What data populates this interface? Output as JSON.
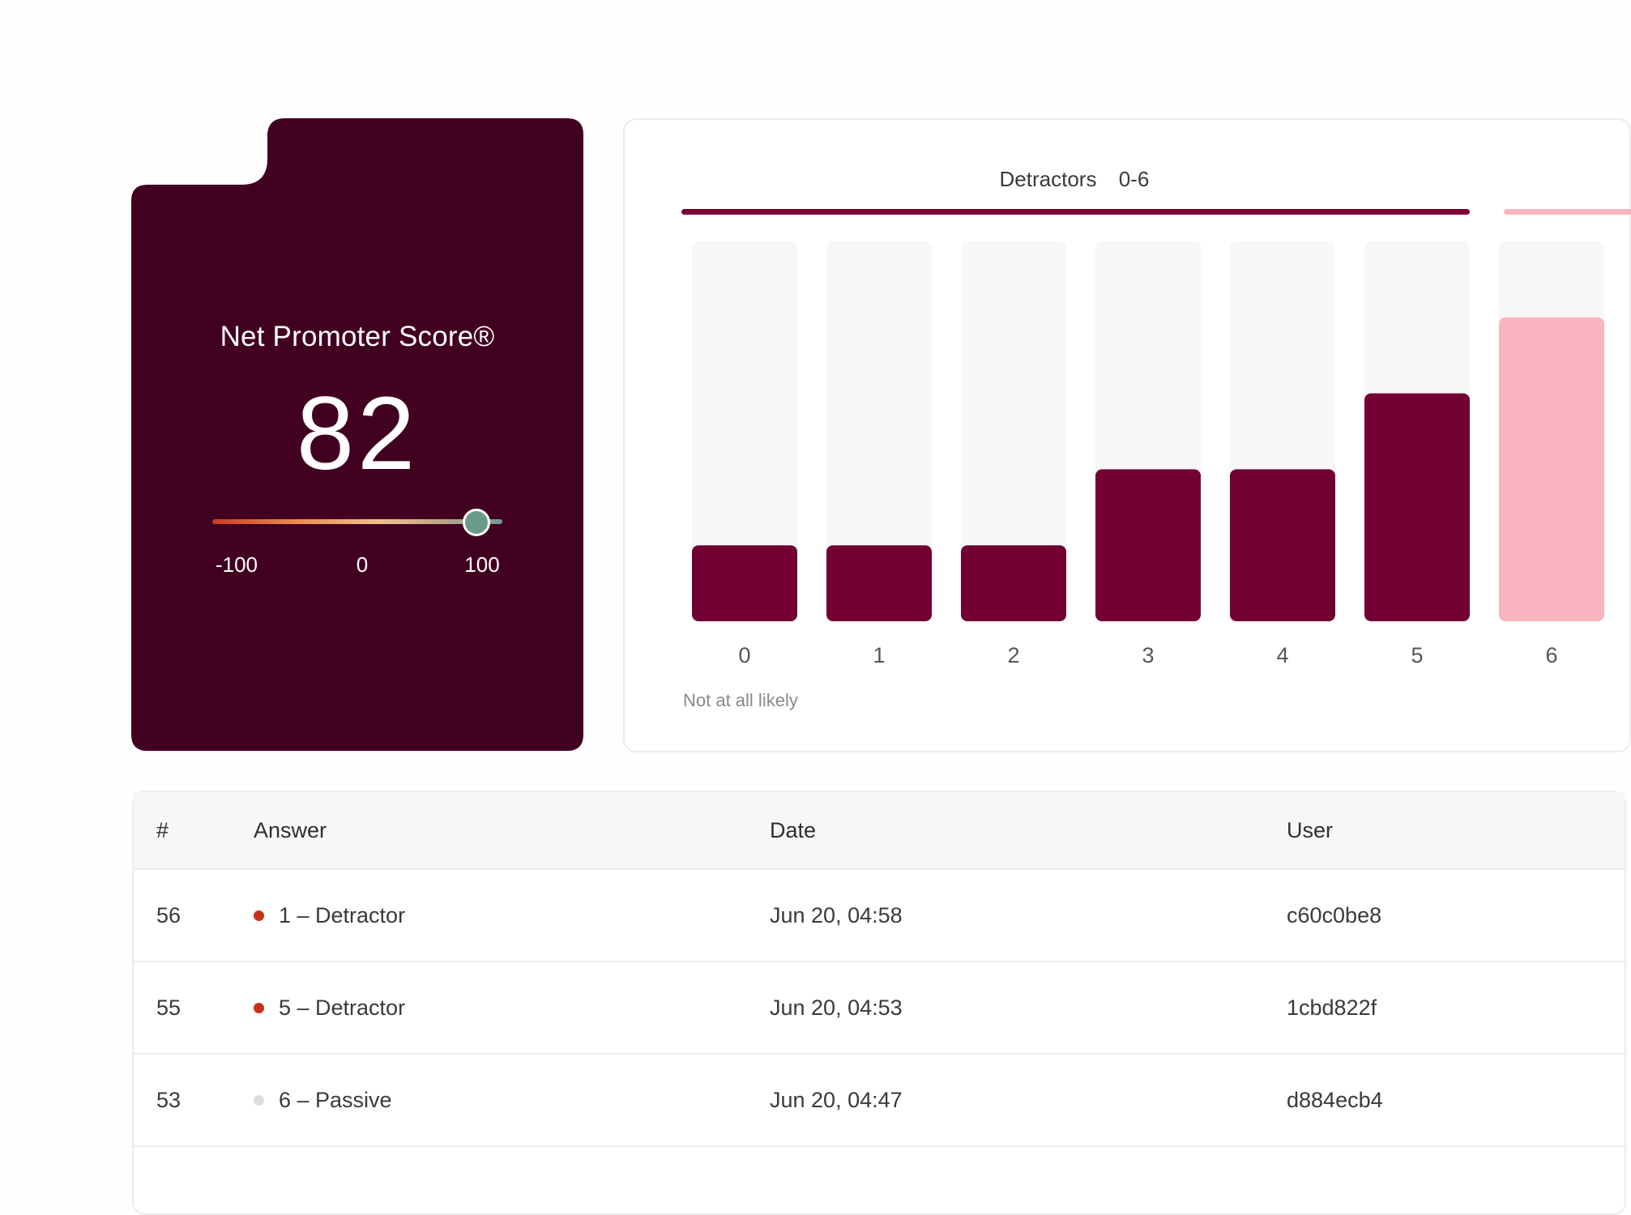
{
  "nps_card": {
    "title": "Net Promoter Score®",
    "value": "82",
    "gauge": {
      "min_label": "-100",
      "mid_label": "0",
      "max_label": "100",
      "min": -100,
      "max": 100,
      "value": 82
    },
    "colors": {
      "background": "#420020",
      "thumb": "#6a9b88"
    }
  },
  "chart_data": {
    "type": "bar",
    "groups": [
      {
        "label": "Detractors",
        "range": "0-6",
        "color": "#7a0035"
      }
    ],
    "categories": [
      "0",
      "1",
      "2",
      "3",
      "4",
      "5",
      "6"
    ],
    "values": [
      1,
      1,
      1,
      2,
      2,
      3,
      4
    ],
    "bar_colors": [
      "#720033",
      "#720033",
      "#720033",
      "#720033",
      "#720033",
      "#720033",
      "#f8b5c0"
    ],
    "ylim": [
      0,
      5
    ],
    "xlabel_left": "Not at all likely"
  },
  "table": {
    "headers": [
      "#",
      "Answer",
      "Date",
      "User"
    ],
    "rows": [
      {
        "num": "56",
        "answer": "1 – Detractor",
        "status_color": "#c9301c",
        "date": "Jun 20, 04:58",
        "user": "c60c0be8"
      },
      {
        "num": "55",
        "answer": "5 – Detractor",
        "status_color": "#c9301c",
        "date": "Jun 20, 04:53",
        "user": "1cbd822f"
      },
      {
        "num": "53",
        "answer": "6 – Passive",
        "status_color": "#dcdcdc",
        "date": "Jun 20, 04:47",
        "user": "d884ecb4"
      }
    ]
  }
}
